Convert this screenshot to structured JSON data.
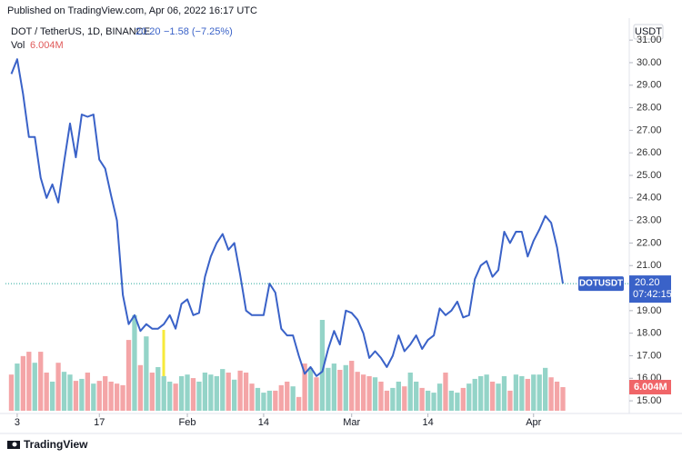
{
  "header": {
    "published": "Published on TradingView.com, Apr 06, 2022 16:17 UTC",
    "footer": "TradingView"
  },
  "chart_data": {
    "type": "line",
    "title": "DOT / TetherUS, 1D, BINANCE",
    "last_price": "20.20",
    "change": "−1.58 (−7.25%)",
    "volume_value": "6.004M",
    "axis_label": "USDT",
    "price_tag": "20.20",
    "countdown": "07:42:15",
    "x": [
      "2022-01-02",
      "2022-01-03",
      "2022-01-04",
      "2022-01-05",
      "2022-01-06",
      "2022-01-07",
      "2022-01-08",
      "2022-01-09",
      "2022-01-10",
      "2022-01-11",
      "2022-01-12",
      "2022-01-13",
      "2022-01-14",
      "2022-01-15",
      "2022-01-16",
      "2022-01-17",
      "2022-01-18",
      "2022-01-19",
      "2022-01-20",
      "2022-01-21",
      "2022-01-22",
      "2022-01-23",
      "2022-01-24",
      "2022-01-25",
      "2022-01-26",
      "2022-01-27",
      "2022-01-28",
      "2022-01-29",
      "2022-01-30",
      "2022-01-31",
      "2022-02-01",
      "2022-02-02",
      "2022-02-03",
      "2022-02-04",
      "2022-02-05",
      "2022-02-06",
      "2022-02-07",
      "2022-02-08",
      "2022-02-09",
      "2022-02-10",
      "2022-02-11",
      "2022-02-12",
      "2022-02-13",
      "2022-02-14",
      "2022-02-15",
      "2022-02-16",
      "2022-02-17",
      "2022-02-18",
      "2022-02-19",
      "2022-02-20",
      "2022-02-21",
      "2022-02-22",
      "2022-02-23",
      "2022-02-24",
      "2022-02-25",
      "2022-02-26",
      "2022-02-27",
      "2022-02-28",
      "2022-03-01",
      "2022-03-02",
      "2022-03-03",
      "2022-03-04",
      "2022-03-05",
      "2022-03-06",
      "2022-03-07",
      "2022-03-08",
      "2022-03-09",
      "2022-03-10",
      "2022-03-11",
      "2022-03-12",
      "2022-03-13",
      "2022-03-14",
      "2022-03-15",
      "2022-03-16",
      "2022-03-17",
      "2022-03-18",
      "2022-03-19",
      "2022-03-20",
      "2022-03-21",
      "2022-03-22",
      "2022-03-23",
      "2022-03-24",
      "2022-03-25",
      "2022-03-26",
      "2022-03-27",
      "2022-03-28",
      "2022-03-29",
      "2022-03-30",
      "2022-03-31",
      "2022-04-01",
      "2022-04-02",
      "2022-04-03",
      "2022-04-04",
      "2022-04-05",
      "2022-04-06"
    ],
    "series": [
      {
        "name": "DOTUSDT",
        "color": "#3a62c8",
        "values": [
          29.5,
          30.15,
          28.6,
          26.7,
          26.7,
          24.9,
          24.0,
          24.6,
          23.8,
          25.6,
          27.3,
          25.8,
          27.7,
          27.6,
          27.7,
          25.7,
          25.3,
          24.1,
          23.0,
          19.7,
          18.4,
          18.8,
          18.1,
          18.4,
          18.2,
          18.2,
          18.4,
          18.8,
          18.2,
          19.3,
          19.5,
          18.8,
          18.9,
          20.5,
          21.4,
          22.0,
          22.4,
          21.7,
          22.0,
          20.6,
          19.0,
          18.8,
          18.8,
          18.8,
          20.2,
          19.8,
          18.2,
          17.9,
          17.9,
          17.0,
          16.2,
          16.5,
          16.1,
          16.3,
          17.3,
          18.1,
          17.5,
          19.0,
          18.9,
          18.6,
          18.0,
          16.9,
          17.2,
          16.9,
          16.5,
          17.0,
          17.9,
          17.2,
          17.5,
          17.9,
          17.3,
          17.7,
          17.9,
          19.1,
          18.8,
          19.0,
          19.4,
          18.7,
          18.8,
          20.4,
          21.0,
          21.2,
          20.5,
          20.8,
          22.5,
          22.0,
          22.5,
          22.5,
          21.4,
          22.1,
          22.6,
          23.2,
          22.9,
          21.8,
          20.2
        ]
      },
      {
        "name": "Vol",
        "axis": "y2",
        "up_color": "#94d4c8",
        "down_color": "#f4a5a7",
        "values": [
          9.2,
          12.0,
          13.9,
          15.0,
          12.2,
          15.0,
          9.7,
          7.4,
          12.2,
          9.9,
          9.2,
          7.6,
          8.1,
          9.7,
          6.9,
          7.6,
          8.8,
          7.4,
          6.9,
          6.5,
          18.0,
          24.3,
          11.6,
          18.9,
          9.7,
          11.1,
          8.8,
          7.4,
          6.9,
          8.8,
          9.2,
          8.3,
          7.4,
          9.7,
          9.2,
          8.8,
          10.6,
          9.7,
          7.9,
          10.2,
          9.7,
          6.9,
          5.8,
          4.6,
          5.1,
          5.1,
          6.5,
          7.4,
          6.2,
          3.5,
          12.0,
          10.9,
          8.5,
          23.1,
          10.9,
          12.0,
          10.4,
          11.6,
          12.7,
          9.9,
          9.2,
          8.8,
          8.5,
          7.4,
          5.1,
          5.8,
          7.4,
          6.2,
          9.7,
          7.4,
          5.8,
          5.1,
          4.6,
          6.9,
          9.7,
          5.1,
          4.6,
          5.8,
          6.9,
          8.1,
          8.8,
          9.2,
          7.4,
          6.9,
          8.8,
          5.1,
          9.2,
          8.8,
          8.1,
          9.2,
          9.2,
          10.9,
          8.5,
          7.4,
          6.004
        ]
      }
    ],
    "xlim": [
      "2022-01-01",
      "2022-04-17"
    ],
    "xticks": [
      {
        "value": "2022-01-03",
        "label": "3"
      },
      {
        "value": "2022-01-17",
        "label": "17"
      },
      {
        "value": "2022-02-01",
        "label": "Feb"
      },
      {
        "value": "2022-02-14",
        "label": "14"
      },
      {
        "value": "2022-03-01",
        "label": "Mar"
      },
      {
        "value": "2022-03-14",
        "label": "14"
      },
      {
        "value": "2022-04-01",
        "label": "Apr"
      }
    ],
    "ylim": [
      14.56,
      31.57
    ],
    "yticks": [
      {
        "value": 15,
        "label": "15.00"
      },
      {
        "value": 16,
        "label": "16.00"
      },
      {
        "value": 17,
        "label": "17.00"
      },
      {
        "value": 18,
        "label": "18.00"
      },
      {
        "value": 19,
        "label": "19.00"
      },
      {
        "value": 20,
        "label": "20.00"
      },
      {
        "value": 21,
        "label": "21.00"
      },
      {
        "value": 22,
        "label": "22.00"
      },
      {
        "value": 23,
        "label": "23.00"
      },
      {
        "value": 24,
        "label": "24.00"
      },
      {
        "value": 25,
        "label": "25.00"
      },
      {
        "value": 26,
        "label": "26.00"
      },
      {
        "value": 27,
        "label": "27.00"
      },
      {
        "value": 28,
        "label": "28.00"
      },
      {
        "value": 29,
        "label": "29.00"
      },
      {
        "value": 30,
        "label": "30.00"
      },
      {
        "value": 31,
        "label": "31.00"
      }
    ],
    "y2lim": [
      0,
      97.5
    ]
  }
}
